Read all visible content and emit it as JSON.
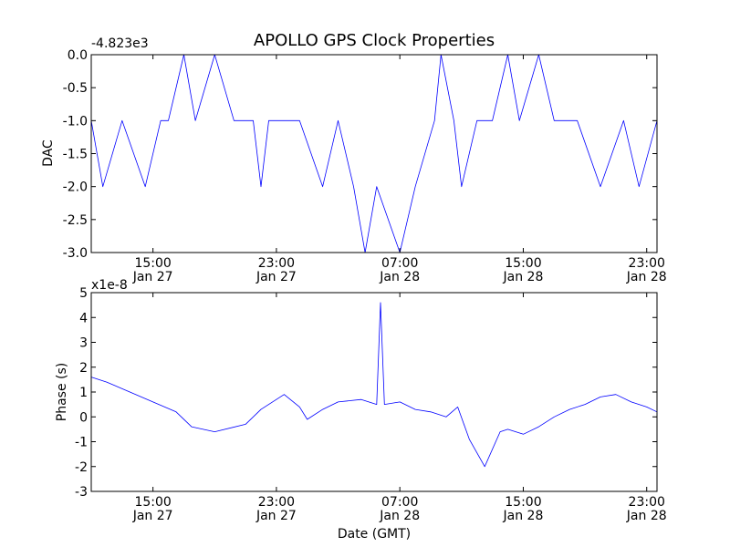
{
  "figure": {
    "title": "APOLLO GPS Clock Properties",
    "xlabel": "Date (GMT)"
  },
  "chart_data": [
    {
      "type": "line",
      "name": "dac-panel",
      "ylabel": "DAC",
      "offset_label": "-4.823e3",
      "ylim": [
        -3.0,
        0.0
      ],
      "yticks": [
        0.0,
        -0.5,
        -1.0,
        -1.5,
        -2.0,
        -2.5,
        -3.0
      ],
      "ytick_labels": [
        "0.0",
        "-0.5",
        "-1.0",
        "-1.5",
        "-2.0",
        "-2.5",
        "-3.0"
      ],
      "xlim": [
        "2013-01-27 11:00",
        "2013-01-28 23:40"
      ],
      "xticks": [
        {
          "value": "2013-01-27 15:00",
          "time": "15:00",
          "date": "Jan 27"
        },
        {
          "value": "2013-01-27 23:00",
          "time": "23:00",
          "date": "Jan 27"
        },
        {
          "value": "2013-01-28 07:00",
          "time": "07:00",
          "date": "Jan 28"
        },
        {
          "value": "2013-01-28 15:00",
          "time": "15:00",
          "date": "Jan 28"
        },
        {
          "value": "2013-01-28 23:00",
          "time": "23:00",
          "date": "Jan 28"
        }
      ],
      "x": [
        "2013-01-27 11:00",
        "2013-01-27 11:45",
        "2013-01-27 13:00",
        "2013-01-27 14:30",
        "2013-01-27 15:30",
        "2013-01-27 16:00",
        "2013-01-27 17:00",
        "2013-01-27 17:45",
        "2013-01-27 19:00",
        "2013-01-27 20:15",
        "2013-01-27 21:30",
        "2013-01-27 22:00",
        "2013-01-27 22:30",
        "2013-01-27 23:30",
        "2013-01-28 00:30",
        "2013-01-28 02:00",
        "2013-01-28 03:00",
        "2013-01-28 04:00",
        "2013-01-28 04:45",
        "2013-01-28 05:30",
        "2013-01-28 07:00",
        "2013-01-28 08:00",
        "2013-01-28 09:15",
        "2013-01-28 09:40",
        "2013-01-28 10:30",
        "2013-01-28 11:00",
        "2013-01-28 12:00",
        "2013-01-28 13:00",
        "2013-01-28 14:00",
        "2013-01-28 14:45",
        "2013-01-28 16:00",
        "2013-01-28 17:00",
        "2013-01-28 18:30",
        "2013-01-28 20:00",
        "2013-01-28 21:30",
        "2013-01-28 22:30",
        "2013-01-28 23:40"
      ],
      "y": [
        -1.0,
        -2.0,
        -1.0,
        -2.0,
        -1.0,
        -1.0,
        0.0,
        -1.0,
        0.0,
        -1.0,
        -1.0,
        -2.0,
        -1.0,
        -1.0,
        -1.0,
        -2.0,
        -1.0,
        -2.0,
        -3.0,
        -2.0,
        -3.0,
        -2.0,
        -1.0,
        0.0,
        -1.0,
        -2.0,
        -1.0,
        -1.0,
        0.0,
        -1.0,
        0.0,
        -1.0,
        -1.0,
        -2.0,
        -1.0,
        -2.0,
        -1.0
      ]
    },
    {
      "type": "line",
      "name": "phase-panel",
      "ylabel": "Phase (s)",
      "offset_label": "x1e-8",
      "ylim": [
        -3,
        5
      ],
      "yticks": [
        5,
        4,
        3,
        2,
        1,
        0,
        -1,
        -2,
        -3
      ],
      "ytick_labels": [
        "5",
        "4",
        "3",
        "2",
        "1",
        "0",
        "-1",
        "-2",
        "-3"
      ],
      "xlim": [
        "2013-01-27 11:00",
        "2013-01-28 23:40"
      ],
      "xticks": [
        {
          "value": "2013-01-27 15:00",
          "time": "15:00",
          "date": "Jan 27"
        },
        {
          "value": "2013-01-27 23:00",
          "time": "23:00",
          "date": "Jan 27"
        },
        {
          "value": "2013-01-28 07:00",
          "time": "07:00",
          "date": "Jan 28"
        },
        {
          "value": "2013-01-28 15:00",
          "time": "15:00",
          "date": "Jan 28"
        },
        {
          "value": "2013-01-28 23:00",
          "time": "23:00",
          "date": "Jan 28"
        }
      ],
      "x": [
        "2013-01-27 11:00",
        "2013-01-27 12:00",
        "2013-01-27 13:30",
        "2013-01-27 15:00",
        "2013-01-27 16:30",
        "2013-01-27 17:30",
        "2013-01-27 19:00",
        "2013-01-27 21:00",
        "2013-01-27 22:00",
        "2013-01-27 23:30",
        "2013-01-28 00:30",
        "2013-01-28 01:00",
        "2013-01-28 02:00",
        "2013-01-28 03:00",
        "2013-01-28 04:30",
        "2013-01-28 05:30",
        "2013-01-28 05:45",
        "2013-01-28 06:00",
        "2013-01-28 07:00",
        "2013-01-28 08:00",
        "2013-01-28 09:00",
        "2013-01-28 10:00",
        "2013-01-28 10:45",
        "2013-01-28 11:30",
        "2013-01-28 12:30",
        "2013-01-28 13:30",
        "2013-01-28 14:00",
        "2013-01-28 15:00",
        "2013-01-28 16:00",
        "2013-01-28 17:00",
        "2013-01-28 18:00",
        "2013-01-28 19:00",
        "2013-01-28 20:00",
        "2013-01-28 21:00",
        "2013-01-28 22:00",
        "2013-01-28 23:00",
        "2013-01-28 23:40"
      ],
      "y": [
        1.6,
        1.4,
        1.0,
        0.6,
        0.2,
        -0.4,
        -0.6,
        -0.3,
        0.3,
        0.9,
        0.4,
        -0.1,
        0.3,
        0.6,
        0.7,
        0.5,
        4.6,
        0.5,
        0.6,
        0.3,
        0.2,
        0.0,
        0.4,
        -0.9,
        -2.0,
        -0.6,
        -0.5,
        -0.7,
        -0.4,
        0.0,
        0.3,
        0.5,
        0.8,
        0.9,
        0.6,
        0.4,
        0.2
      ]
    }
  ]
}
